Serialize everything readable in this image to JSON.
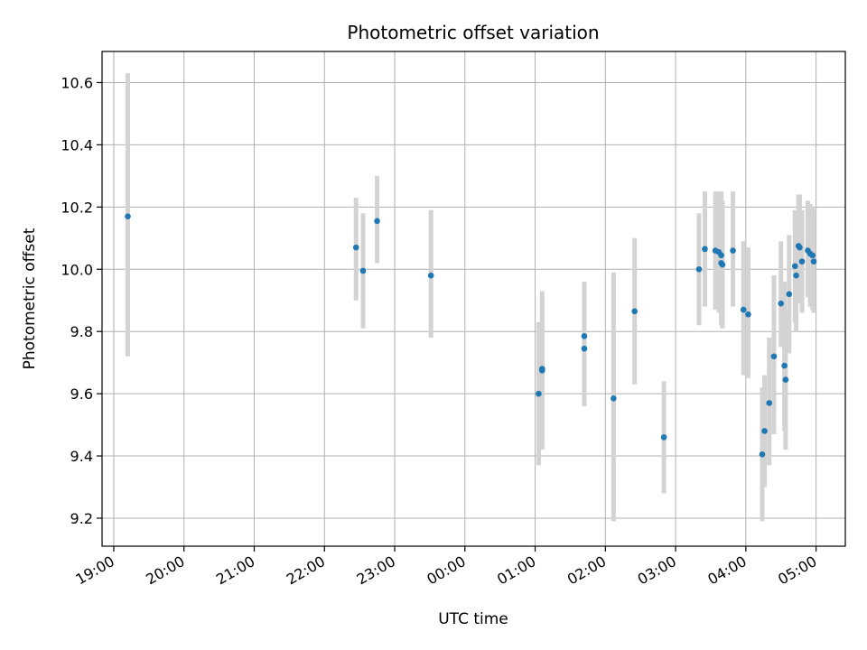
{
  "chart_data": {
    "type": "scatter",
    "title": "Photometric offset variation",
    "xlabel": "UTC time",
    "ylabel": "Photometric offset",
    "x_ticks": [
      "19:00",
      "20:00",
      "21:00",
      "22:00",
      "23:00",
      "00:00",
      "01:00",
      "02:00",
      "03:00",
      "04:00",
      "05:00"
    ],
    "y_ticks": [
      9.2,
      9.4,
      9.6,
      9.8,
      10.0,
      10.2,
      10.4,
      10.6
    ],
    "xlim": [
      "18:50",
      "05:25"
    ],
    "ylim": [
      9.11,
      10.7
    ],
    "grid": true,
    "colors": {
      "point": "#1f77b4",
      "errorbar": "#d3d3d3",
      "grid": "#b0b0b0"
    },
    "points": [
      {
        "t": "19:12",
        "y": 10.17,
        "lo": 9.72,
        "hi": 10.63
      },
      {
        "t": "22:27",
        "y": 10.07,
        "lo": 9.9,
        "hi": 10.23
      },
      {
        "t": "22:33",
        "y": 9.995,
        "lo": 9.81,
        "hi": 10.18
      },
      {
        "t": "22:45",
        "y": 10.155,
        "lo": 10.02,
        "hi": 10.3
      },
      {
        "t": "23:31",
        "y": 9.98,
        "lo": 9.78,
        "hi": 10.19
      },
      {
        "t": "01:03",
        "y": 9.6,
        "lo": 9.37,
        "hi": 9.83
      },
      {
        "t": "01:06",
        "y": 9.675,
        "lo": 9.42,
        "hi": 9.93
      },
      {
        "t": "01:06",
        "y": 9.68,
        "lo": 9.45,
        "hi": 9.91
      },
      {
        "t": "01:42",
        "y": 9.785,
        "lo": 9.6,
        "hi": 9.96
      },
      {
        "t": "01:42",
        "y": 9.745,
        "lo": 9.56,
        "hi": 9.93
      },
      {
        "t": "02:07",
        "y": 9.585,
        "lo": 9.19,
        "hi": 9.99
      },
      {
        "t": "02:25",
        "y": 9.865,
        "lo": 9.63,
        "hi": 10.1
      },
      {
        "t": "02:50",
        "y": 9.46,
        "lo": 9.28,
        "hi": 9.64
      },
      {
        "t": "03:20",
        "y": 10.0,
        "lo": 9.82,
        "hi": 10.18
      },
      {
        "t": "03:25",
        "y": 10.065,
        "lo": 9.88,
        "hi": 10.25
      },
      {
        "t": "03:34",
        "y": 10.06,
        "lo": 9.87,
        "hi": 10.25
      },
      {
        "t": "03:37",
        "y": 10.055,
        "lo": 9.86,
        "hi": 10.25
      },
      {
        "t": "03:39",
        "y": 10.045,
        "lo": 9.84,
        "hi": 10.25
      },
      {
        "t": "03:39",
        "y": 10.02,
        "lo": 9.82,
        "hi": 10.22
      },
      {
        "t": "03:40",
        "y": 10.015,
        "lo": 9.81,
        "hi": 10.22
      },
      {
        "t": "03:49",
        "y": 10.06,
        "lo": 9.88,
        "hi": 10.25
      },
      {
        "t": "03:58",
        "y": 9.87,
        "lo": 9.66,
        "hi": 10.09
      },
      {
        "t": "04:02",
        "y": 9.855,
        "lo": 9.65,
        "hi": 10.07
      },
      {
        "t": "04:14",
        "y": 9.405,
        "lo": 9.19,
        "hi": 9.62
      },
      {
        "t": "04:16",
        "y": 9.48,
        "lo": 9.3,
        "hi": 9.66
      },
      {
        "t": "04:20",
        "y": 9.57,
        "lo": 9.37,
        "hi": 9.78
      },
      {
        "t": "04:24",
        "y": 9.72,
        "lo": 9.47,
        "hi": 9.98
      },
      {
        "t": "04:30",
        "y": 9.89,
        "lo": 9.75,
        "hi": 10.09
      },
      {
        "t": "04:33",
        "y": 9.69,
        "lo": 9.48,
        "hi": 9.96
      },
      {
        "t": "04:34",
        "y": 9.645,
        "lo": 9.42,
        "hi": 9.87
      },
      {
        "t": "04:37",
        "y": 9.92,
        "lo": 9.73,
        "hi": 10.11
      },
      {
        "t": "04:42",
        "y": 10.01,
        "lo": 9.83,
        "hi": 10.19
      },
      {
        "t": "04:43",
        "y": 9.98,
        "lo": 9.8,
        "hi": 10.15
      },
      {
        "t": "04:45",
        "y": 10.075,
        "lo": 9.91,
        "hi": 10.24
      },
      {
        "t": "04:46",
        "y": 10.07,
        "lo": 9.89,
        "hi": 10.24
      },
      {
        "t": "04:48",
        "y": 10.025,
        "lo": 9.86,
        "hi": 10.19
      },
      {
        "t": "04:53",
        "y": 10.06,
        "lo": 9.91,
        "hi": 10.22
      },
      {
        "t": "04:55",
        "y": 10.05,
        "lo": 9.88,
        "hi": 10.21
      },
      {
        "t": "04:57",
        "y": 10.045,
        "lo": 9.87,
        "hi": 10.2
      },
      {
        "t": "04:58",
        "y": 10.025,
        "lo": 9.86,
        "hi": 10.19
      }
    ]
  }
}
